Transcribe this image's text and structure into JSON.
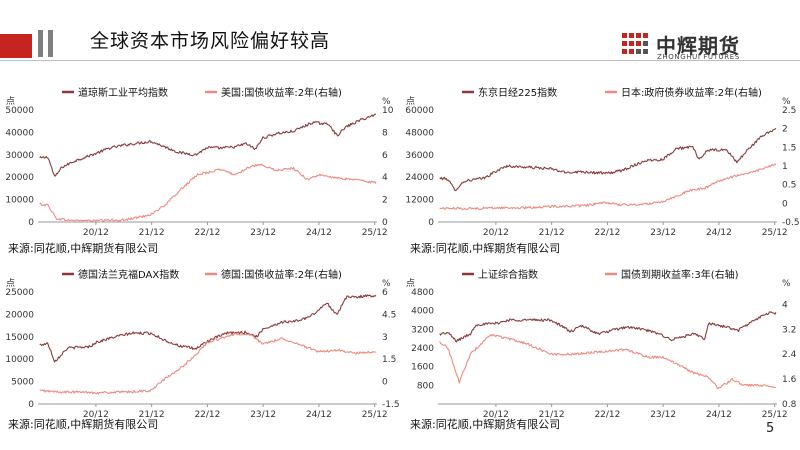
{
  "page": {
    "title": "全球资本市场风险偏好较高",
    "logo": {
      "name": "中辉期货",
      "en": "ZHONGHUI FUTURES"
    },
    "page_number": "5",
    "colors": {
      "brand_red": "#c6241e",
      "dark_series": "#8b3a3a",
      "light_series": "#ef8a80",
      "gray_bar": "#7f7f7f"
    }
  },
  "sources": [
    "来源:同花顺,中辉期货有限公司",
    "来源:同花顺,中辉期货有限公司",
    "来源:同花顺,中辉期货有限公司",
    "来源:同花顺,中辉期货有限公司"
  ],
  "chart_data": [
    {
      "type": "line",
      "left_unit": "点",
      "right_unit": "%",
      "x_ticks": [
        "20/12",
        "21/12",
        "22/12",
        "23/12",
        "24/12",
        "25/12"
      ],
      "y_ticks": [
        "0",
        "10000",
        "20000",
        "30000",
        "40000",
        "50000"
      ],
      "y2_ticks": [
        "0",
        "2",
        "4",
        "6",
        "8",
        "10"
      ],
      "ylim": [
        0,
        50000
      ],
      "y2lim": [
        0,
        10
      ],
      "series": [
        {
          "name": "道琼斯工业平均指数",
          "axis": "left",
          "color": "#8b3a3a",
          "x": [
            2019.95,
            2020.1,
            2020.22,
            2020.35,
            2020.6,
            2020.95,
            2021.2,
            2021.5,
            2021.95,
            2022.2,
            2022.45,
            2022.75,
            2022.95,
            2023.2,
            2023.45,
            2023.65,
            2023.82,
            2023.95,
            2024.2,
            2024.5,
            2024.85,
            2025.15,
            2025.28,
            2025.45,
            2025.7,
            2025.98
          ],
          "values": [
            28500,
            29000,
            20000,
            24500,
            27500,
            30500,
            33000,
            34500,
            36000,
            33500,
            31000,
            30000,
            33200,
            33000,
            33500,
            35000,
            32500,
            37500,
            39500,
            40500,
            44500,
            43500,
            38500,
            42500,
            45500,
            48000
          ]
        },
        {
          "name": "美国:国债收益率:2年(右轴)",
          "axis": "right",
          "color": "#ef8a80",
          "x": [
            2019.95,
            2020.1,
            2020.25,
            2020.5,
            2020.95,
            2021.5,
            2021.8,
            2021.95,
            2022.2,
            2022.5,
            2022.8,
            2022.95,
            2023.2,
            2023.45,
            2023.7,
            2023.9,
            2024.2,
            2024.5,
            2024.75,
            2024.95,
            2025.3,
            2025.6,
            2025.98
          ],
          "values": [
            1.6,
            1.5,
            0.3,
            0.15,
            0.12,
            0.2,
            0.5,
            0.7,
            1.5,
            3.0,
            4.3,
            4.4,
            4.7,
            4.2,
            4.9,
            5.1,
            4.6,
            4.8,
            3.8,
            4.2,
            3.9,
            3.8,
            3.5
          ]
        }
      ]
    },
    {
      "type": "line",
      "left_unit": "点",
      "right_unit": "%",
      "x_ticks": [
        "20/12",
        "21/12",
        "22/12",
        "23/12",
        "24/12",
        "25/12"
      ],
      "y_ticks": [
        "0",
        "12000",
        "24000",
        "36000",
        "48000",
        "60000"
      ],
      "y2_ticks": [
        "-0.5",
        "0",
        "0.5",
        "1",
        "1.5",
        "2",
        "2.5"
      ],
      "ylim": [
        0,
        60000
      ],
      "y2lim": [
        -0.5,
        2.5
      ],
      "series": [
        {
          "name": "东京日经225指数",
          "axis": "left",
          "color": "#8b3a3a",
          "x": [
            2019.95,
            2020.1,
            2020.22,
            2020.4,
            2020.75,
            2020.95,
            2021.15,
            2021.7,
            2021.95,
            2022.2,
            2022.5,
            2022.95,
            2023.2,
            2023.45,
            2023.65,
            2023.95,
            2024.2,
            2024.5,
            2024.6,
            2024.75,
            2025.1,
            2025.28,
            2025.5,
            2025.75,
            2025.98
          ],
          "values": [
            23500,
            23000,
            17000,
            22000,
            23500,
            27000,
            30000,
            29000,
            28500,
            26500,
            27000,
            26000,
            27500,
            30500,
            33000,
            33500,
            39500,
            40000,
            33000,
            38500,
            38500,
            32000,
            39500,
            46500,
            50000
          ]
        },
        {
          "name": "日本:政府债券收益率:2年(右轴)",
          "axis": "right",
          "color": "#ef8a80",
          "x": [
            2019.95,
            2020.5,
            2021.0,
            2021.5,
            2022.0,
            2022.5,
            2022.95,
            2023.2,
            2023.6,
            2023.95,
            2024.2,
            2024.45,
            2024.7,
            2024.95,
            2025.3,
            2025.6,
            2025.98
          ],
          "values": [
            -0.13,
            -0.14,
            -0.12,
            -0.12,
            -0.08,
            -0.07,
            0.02,
            -0.04,
            -0.03,
            0.05,
            0.2,
            0.35,
            0.4,
            0.6,
            0.75,
            0.85,
            1.05
          ]
        }
      ]
    },
    {
      "type": "line",
      "left_unit": "点",
      "right_unit": "%",
      "x_ticks": [
        "20/12",
        "21/12",
        "22/12",
        "23/12",
        "24/12",
        "25/12"
      ],
      "y_ticks": [
        "0",
        "5000",
        "10000",
        "15000",
        "20000",
        "25000"
      ],
      "y2_ticks": [
        "-1.5",
        "0",
        "1.5",
        "3",
        "4.5",
        "6"
      ],
      "ylim": [
        0,
        25000
      ],
      "y2lim": [
        -1.5,
        6
      ],
      "series": [
        {
          "name": "德国法兰克福DAX指数",
          "axis": "left",
          "color": "#8b3a3a",
          "x": [
            2019.95,
            2020.1,
            2020.22,
            2020.45,
            2020.85,
            2020.95,
            2021.3,
            2021.6,
            2021.95,
            2022.2,
            2022.45,
            2022.75,
            2022.95,
            2023.3,
            2023.65,
            2023.85,
            2023.95,
            2024.3,
            2024.55,
            2024.8,
            2025.1,
            2025.28,
            2025.45,
            2025.7,
            2025.98
          ],
          "values": [
            13200,
            13500,
            9500,
            12500,
            12800,
            13700,
            15000,
            15800,
            15800,
            14200,
            13000,
            12300,
            14000,
            15800,
            16000,
            15000,
            16700,
            18300,
            18500,
            19500,
            22500,
            20000,
            23800,
            24000,
            24200
          ]
        },
        {
          "name": "德国:国债收益率:2年(右轴)",
          "axis": "right",
          "color": "#ef8a80",
          "x": [
            2019.95,
            2020.3,
            2020.7,
            2021.0,
            2021.5,
            2021.95,
            2022.2,
            2022.45,
            2022.75,
            2022.95,
            2023.2,
            2023.5,
            2023.75,
            2023.95,
            2024.3,
            2024.6,
            2024.95,
            2025.3,
            2025.6,
            2025.98
          ],
          "values": [
            -0.6,
            -0.7,
            -0.7,
            -0.75,
            -0.7,
            -0.6,
            0.2,
            0.8,
            1.8,
            2.6,
            2.9,
            3.2,
            3.1,
            2.5,
            2.9,
            2.5,
            2.0,
            2.1,
            1.9,
            2.0
          ]
        }
      ]
    },
    {
      "type": "line",
      "left_unit": "点",
      "right_unit": "%",
      "x_ticks": [
        "20/12",
        "21/12",
        "22/12",
        "23/12",
        "24/12",
        "25/12"
      ],
      "y_ticks": [
        "800",
        "1600",
        "2400",
        "3200",
        "4000",
        "4800"
      ],
      "y2_ticks": [
        "0.8",
        "1.6",
        "2.4",
        "3.2",
        "4"
      ],
      "ylim": [
        0,
        4800
      ],
      "y2lim": [
        0.8,
        4.4
      ],
      "series": [
        {
          "name": "上证综合指数",
          "axis": "left",
          "color": "#8b3a3a",
          "x": [
            2019.95,
            2020.1,
            2020.25,
            2020.5,
            2020.6,
            2020.95,
            2021.2,
            2021.7,
            2021.95,
            2022.3,
            2022.5,
            2022.8,
            2022.95,
            2023.3,
            2023.6,
            2023.95,
            2024.1,
            2024.5,
            2024.7,
            2024.78,
            2025.1,
            2025.3,
            2025.6,
            2025.85,
            2025.98
          ],
          "values": [
            3000,
            3050,
            2700,
            3000,
            3400,
            3450,
            3600,
            3600,
            3600,
            3100,
            3350,
            3000,
            3100,
            3300,
            3200,
            2950,
            2750,
            3000,
            2800,
            3450,
            3300,
            3150,
            3600,
            3900,
            3900
          ]
        },
        {
          "name": "国债到期收益率:3年(右轴)",
          "axis": "right",
          "color": "#ef8a80",
          "x": [
            2019.95,
            2020.1,
            2020.3,
            2020.5,
            2020.85,
            2020.95,
            2021.5,
            2021.95,
            2022.3,
            2022.95,
            2023.3,
            2023.7,
            2023.95,
            2024.2,
            2024.5,
            2024.75,
            2024.95,
            2025.2,
            2025.4,
            2025.7,
            2025.98
          ],
          "values": [
            2.8,
            2.6,
            1.5,
            2.4,
            3.0,
            3.0,
            2.75,
            2.4,
            2.4,
            2.5,
            2.55,
            2.3,
            2.3,
            2.1,
            1.8,
            1.7,
            1.3,
            1.6,
            1.4,
            1.4,
            1.35
          ]
        }
      ]
    }
  ]
}
